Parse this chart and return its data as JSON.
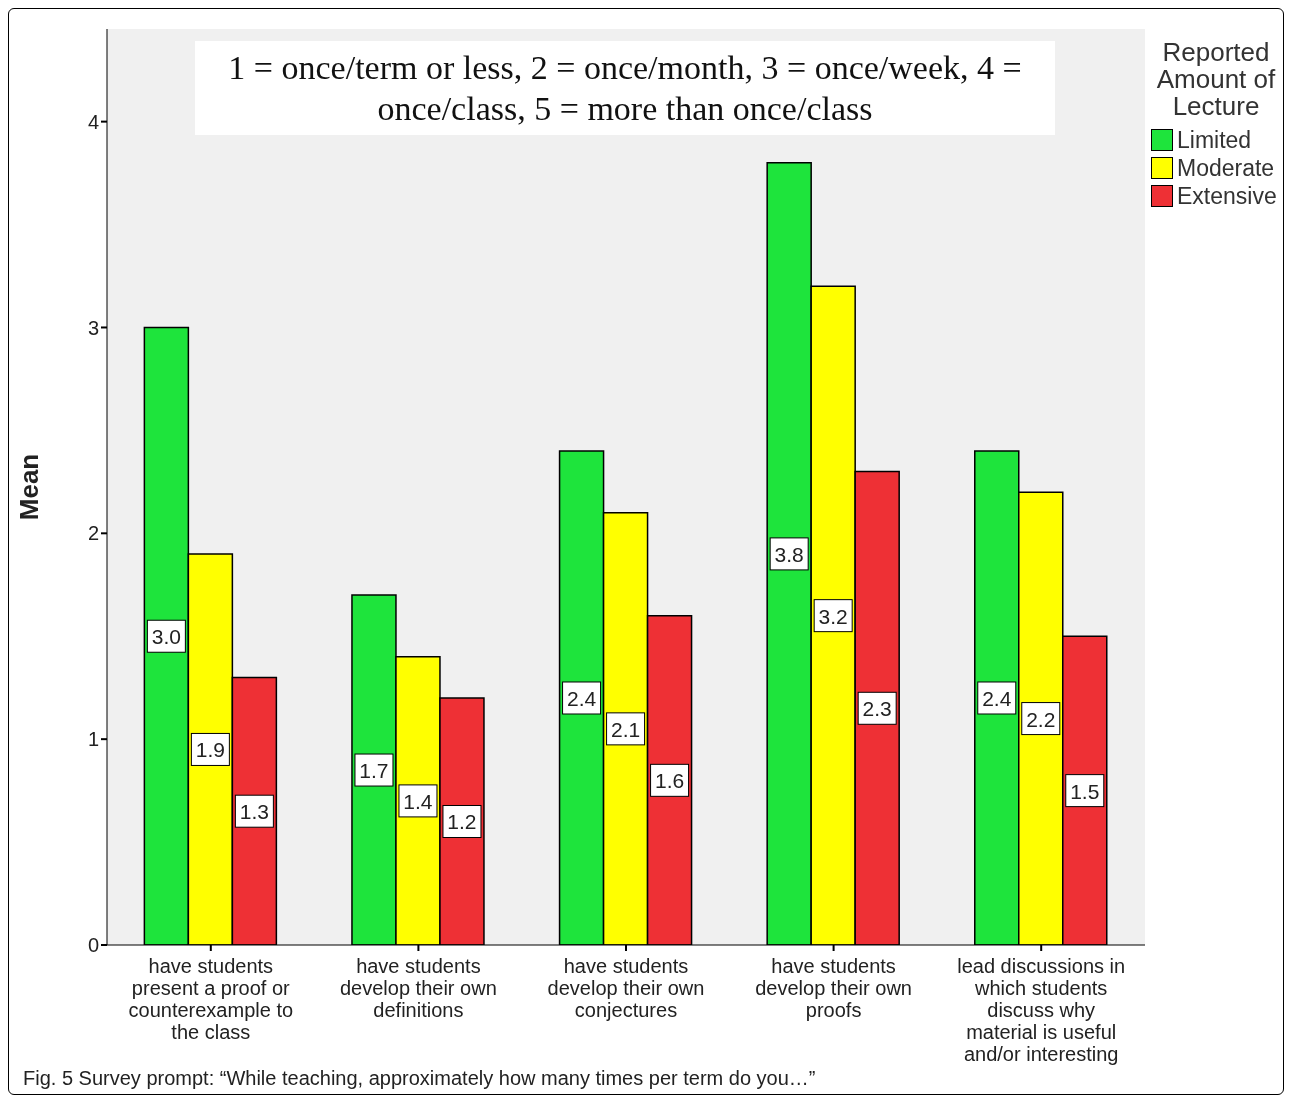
{
  "chart_data": {
    "type": "bar",
    "ylabel": "Mean",
    "legend_title": "Reported Amount of Lecture",
    "categories": [
      "have students present a proof or counterexample to the class",
      "have students develop their own definitions",
      "have students develop their own conjectures",
      "have students develop their own proofs",
      "lead discussions in which students discuss why material is useful and/or interesting"
    ],
    "series": [
      {
        "name": "Limited",
        "color": "#1ee43c",
        "values": [
          3.0,
          1.7,
          2.4,
          3.8,
          2.4
        ],
        "value_labels": [
          "3.0",
          "1.7",
          "2.4",
          "3.8",
          "2.4"
        ]
      },
      {
        "name": "Moderate",
        "color": "#ffff00",
        "values": [
          1.9,
          1.4,
          2.1,
          3.2,
          2.2
        ],
        "value_labels": [
          "1.9",
          "1.4",
          "2.1",
          "3.2",
          "2.2"
        ]
      },
      {
        "name": "Extensive",
        "color": "#ee3035",
        "values": [
          1.3,
          1.2,
          1.6,
          2.3,
          1.5
        ],
        "value_labels": [
          "1.3",
          "1.2",
          "1.6",
          "2.3",
          "1.5"
        ]
      }
    ],
    "ylim": [
      0,
      4.45
    ],
    "yticks": [
      0,
      1,
      2,
      3,
      4
    ],
    "grid": false,
    "legend": "top right",
    "annotations": [
      "1 = once/term or less, 2 = once/month, 3 = once/week, 4 = once/class, 5 = more than once/class",
      "Fig. 5 Survey prompt: “While teaching, approximately how many times per term do you…”"
    ]
  }
}
